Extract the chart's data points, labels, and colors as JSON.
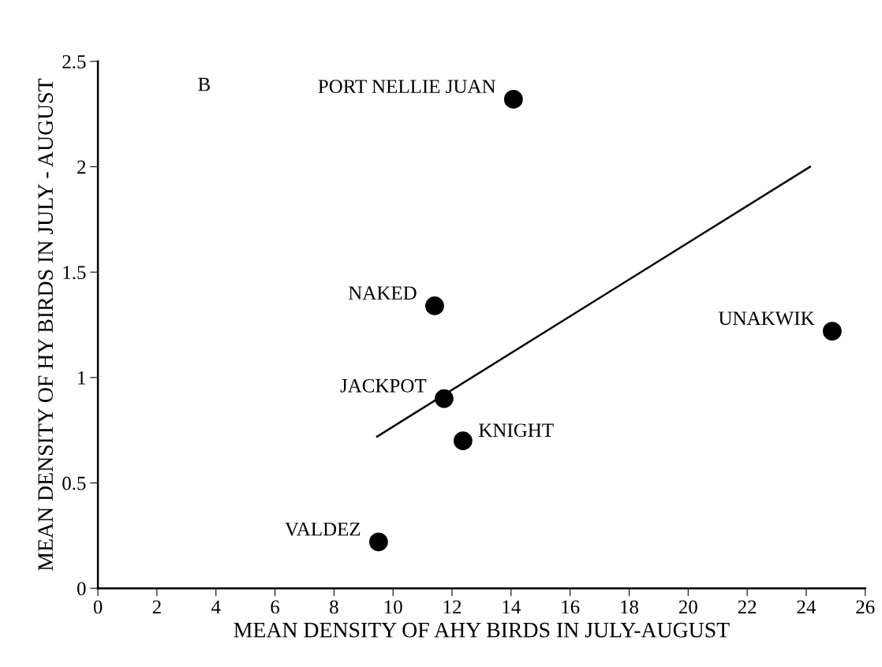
{
  "chart_data": {
    "type": "scatter",
    "xlabel": "MEAN DENSITY OF AHY BIRDS IN JULY-AUGUST",
    "ylabel": "MEAN DENSITY OF HY BIRDS IN JULY - AUGUST",
    "series": [
      {
        "color": "#000000",
        "marker": "circle",
        "x": [
          14.08,
          11.41,
          24.88,
          11.73,
          12.37,
          9.51
        ],
        "values": [
          2.32,
          1.34,
          1.22,
          0.9,
          0.7,
          0.22
        ]
      },
      {
        "type": "line",
        "color": "#000000",
        "line_style": "solid",
        "x": [
          9.46,
          24.13
        ],
        "values": [
          0.72,
          2.0
        ]
      }
    ],
    "annotations": [
      "B",
      {
        "text": "PORT NELLIE JUAN",
        "x": 14.08,
        "y": 2.32
      },
      {
        "text": "NAKED",
        "x": 11.41,
        "y": 1.34
      },
      {
        "text": "UNAKWIK",
        "x": 24.88,
        "y": 1.22
      },
      {
        "text": "JACKPOT",
        "x": 11.73,
        "y": 0.9
      },
      {
        "text": "KNIGHT",
        "x": 12.37,
        "y": 0.7
      },
      {
        "text": "VALDEZ",
        "x": 9.51,
        "y": 0.22
      }
    ],
    "xlim": [
      0,
      26
    ],
    "xticks": [
      0,
      2,
      4,
      6,
      8,
      10,
      12,
      14,
      16,
      18,
      20,
      22,
      24,
      26
    ],
    "ylim": [
      0,
      2.5
    ],
    "yticks": [
      0,
      0.5,
      1,
      1.5,
      2,
      2.5
    ],
    "grid": false,
    "legend": false
  }
}
